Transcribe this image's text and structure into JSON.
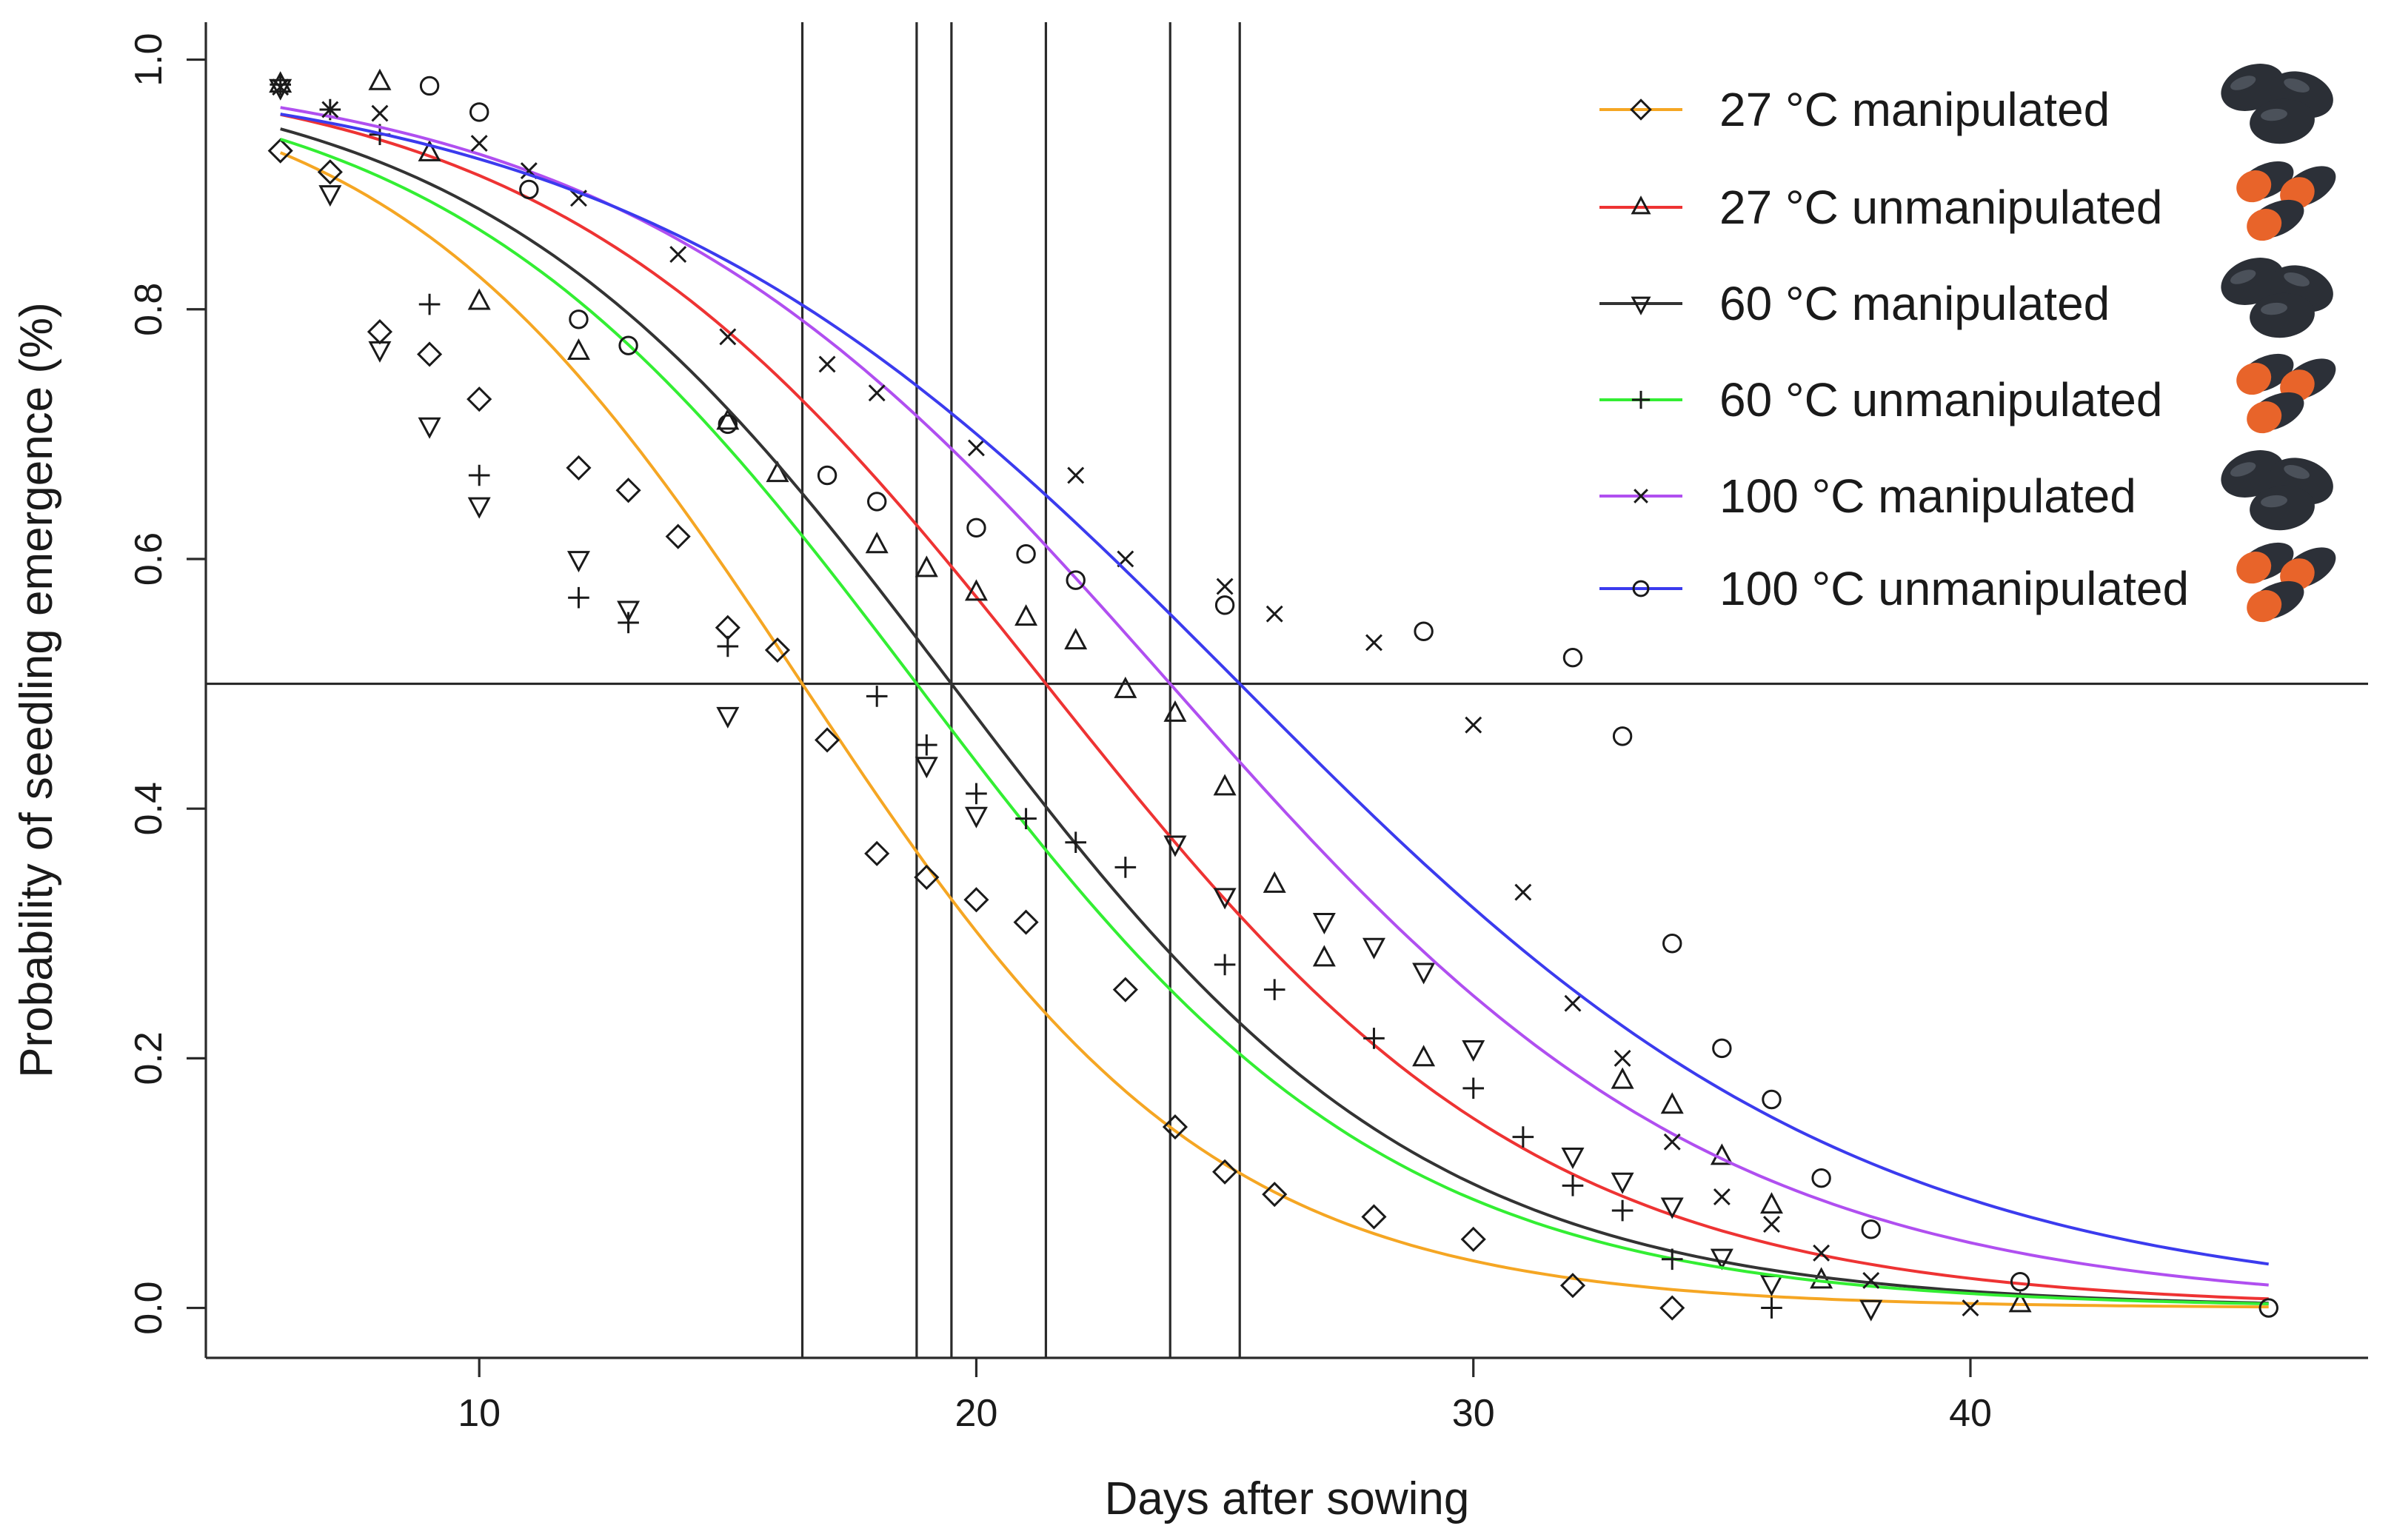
{
  "chart_data": {
    "type": "scatter",
    "title": "",
    "xlabel": "Days after sowing",
    "ylabel": "Probability of seedling emergence (%)",
    "xlim": [
      4.5,
      48
    ],
    "ylim": [
      -0.04,
      1.03
    ],
    "x_ticks": [
      10,
      20,
      30,
      40
    ],
    "y_ticks": [
      0.0,
      0.2,
      0.4,
      0.6,
      0.8,
      1.0
    ],
    "x_tick_labels": [
      "10",
      "20",
      "30",
      "40"
    ],
    "y_tick_labels": [
      "0.0",
      "0.2",
      "0.4",
      "0.6",
      "0.8",
      "1.0"
    ],
    "grid": false,
    "legend_position": "top-right",
    "reference_lines": {
      "horizontal_y": 0.5,
      "vertical_x": [
        16.5,
        18.8,
        19.5,
        21.4,
        23.9,
        25.3
      ]
    },
    "series": [
      {
        "name": "27 °C manipulated",
        "color": "#f5a623",
        "marker": "diamond",
        "seed_icon": "dark-seeds-icon",
        "median_day": 16.5,
        "slope": 0.24,
        "points": [
          [
            6,
            0.927
          ],
          [
            7,
            0.91
          ],
          [
            8,
            0.782
          ],
          [
            9,
            0.764
          ],
          [
            10,
            0.728
          ],
          [
            12,
            0.673
          ],
          [
            13,
            0.655
          ],
          [
            14,
            0.618
          ],
          [
            15,
            0.545
          ],
          [
            16,
            0.527
          ],
          [
            17,
            0.455
          ],
          [
            18,
            0.364
          ],
          [
            19,
            0.345
          ],
          [
            20,
            0.327
          ],
          [
            21,
            0.309
          ],
          [
            23,
            0.255
          ],
          [
            24,
            0.145
          ],
          [
            25,
            0.109
          ],
          [
            26,
            0.091
          ],
          [
            28,
            0.073
          ],
          [
            30,
            0.055
          ],
          [
            32,
            0.018
          ],
          [
            34,
            0.0
          ]
        ]
      },
      {
        "name": "27 °C unmanipulated",
        "color": "#ee3333",
        "marker": "triangle-up",
        "seed_icon": "orange-seeds-icon",
        "median_day": 21.4,
        "slope": 0.2,
        "points": [
          [
            6,
            0.98
          ],
          [
            8,
            0.982
          ],
          [
            9,
            0.925
          ],
          [
            10,
            0.806
          ],
          [
            12,
            0.766
          ],
          [
            15,
            0.71
          ],
          [
            16,
            0.668
          ],
          [
            18,
            0.611
          ],
          [
            19,
            0.592
          ],
          [
            20,
            0.573
          ],
          [
            21,
            0.553
          ],
          [
            22,
            0.534
          ],
          [
            23,
            0.495
          ],
          [
            24,
            0.476
          ],
          [
            25,
            0.417
          ],
          [
            26,
            0.339
          ],
          [
            27,
            0.28
          ],
          [
            29,
            0.2
          ],
          [
            33,
            0.182
          ],
          [
            34,
            0.162
          ],
          [
            35,
            0.121
          ],
          [
            36,
            0.082
          ],
          [
            37,
            0.022
          ],
          [
            41,
            0.003
          ]
        ]
      },
      {
        "name": "60 °C manipulated",
        "color": "#333333",
        "marker": "triangle-down",
        "seed_icon": "dark-seeds-icon",
        "median_day": 19.5,
        "slope": 0.21,
        "points": [
          [
            6,
            0.978
          ],
          [
            7,
            0.893
          ],
          [
            8,
            0.768
          ],
          [
            9,
            0.707
          ],
          [
            10,
            0.643
          ],
          [
            12,
            0.6
          ],
          [
            13,
            0.56
          ],
          [
            15,
            0.475
          ],
          [
            19,
            0.435
          ],
          [
            20,
            0.395
          ],
          [
            24,
            0.372
          ],
          [
            25,
            0.33
          ],
          [
            27,
            0.31
          ],
          [
            28,
            0.29
          ],
          [
            29,
            0.27
          ],
          [
            30,
            0.208
          ],
          [
            32,
            0.122
          ],
          [
            33,
            0.102
          ],
          [
            34,
            0.082
          ],
          [
            35,
            0.041
          ],
          [
            36,
            0.02
          ],
          [
            38,
            0.0
          ]
        ]
      },
      {
        "name": "60 °C unmanipulated",
        "color": "#33ee33",
        "marker": "plus",
        "seed_icon": "orange-seeds-icon",
        "median_day": 18.8,
        "slope": 0.21,
        "points": [
          [
            6,
            0.98
          ],
          [
            7,
            0.96
          ],
          [
            8,
            0.94
          ],
          [
            9,
            0.804
          ],
          [
            10,
            0.667
          ],
          [
            12,
            0.569
          ],
          [
            13,
            0.549
          ],
          [
            15,
            0.53
          ],
          [
            18,
            0.49
          ],
          [
            19,
            0.451
          ],
          [
            20,
            0.412
          ],
          [
            21,
            0.392
          ],
          [
            22,
            0.373
          ],
          [
            23,
            0.353
          ],
          [
            25,
            0.275
          ],
          [
            26,
            0.255
          ],
          [
            28,
            0.216
          ],
          [
            30,
            0.176
          ],
          [
            31,
            0.137
          ],
          [
            32,
            0.098
          ],
          [
            33,
            0.078
          ],
          [
            34,
            0.039
          ],
          [
            36,
            0.0
          ]
        ]
      },
      {
        "name": "100 °C manipulated",
        "color": "#b04ff0",
        "marker": "x",
        "seed_icon": "dark-seeds-icon",
        "median_day": 23.9,
        "slope": 0.18,
        "points": [
          [
            6,
            0.978
          ],
          [
            7,
            0.96
          ],
          [
            8,
            0.957
          ],
          [
            10,
            0.933
          ],
          [
            11,
            0.911
          ],
          [
            12,
            0.889
          ],
          [
            14,
            0.844
          ],
          [
            15,
            0.778
          ],
          [
            17,
            0.756
          ],
          [
            18,
            0.733
          ],
          [
            20,
            0.689
          ],
          [
            22,
            0.667
          ],
          [
            23,
            0.6
          ],
          [
            25,
            0.578
          ],
          [
            26,
            0.556
          ],
          [
            28,
            0.533
          ],
          [
            30,
            0.467
          ],
          [
            31,
            0.333
          ],
          [
            32,
            0.244
          ],
          [
            33,
            0.2
          ],
          [
            34,
            0.133
          ],
          [
            35,
            0.089
          ],
          [
            36,
            0.067
          ],
          [
            37,
            0.044
          ],
          [
            38,
            0.022
          ],
          [
            40,
            0.0
          ]
        ]
      },
      {
        "name": "100 °C unmanipulated",
        "color": "#3b3bee",
        "marker": "circle",
        "seed_icon": "orange-seeds-icon",
        "median_day": 25.3,
        "slope": 0.16,
        "points": [
          [
            9,
            0.979
          ],
          [
            10,
            0.958
          ],
          [
            11,
            0.896
          ],
          [
            12,
            0.792
          ],
          [
            13,
            0.771
          ],
          [
            15,
            0.708
          ],
          [
            17,
            0.667
          ],
          [
            18,
            0.646
          ],
          [
            20,
            0.625
          ],
          [
            21,
            0.604
          ],
          [
            22,
            0.583
          ],
          [
            25,
            0.563
          ],
          [
            29,
            0.542
          ],
          [
            32,
            0.521
          ],
          [
            33,
            0.458
          ],
          [
            34,
            0.292
          ],
          [
            35,
            0.208
          ],
          [
            36,
            0.167
          ],
          [
            37,
            0.104
          ],
          [
            38,
            0.063
          ],
          [
            41,
            0.021
          ],
          [
            46,
            0.0
          ]
        ]
      }
    ]
  }
}
